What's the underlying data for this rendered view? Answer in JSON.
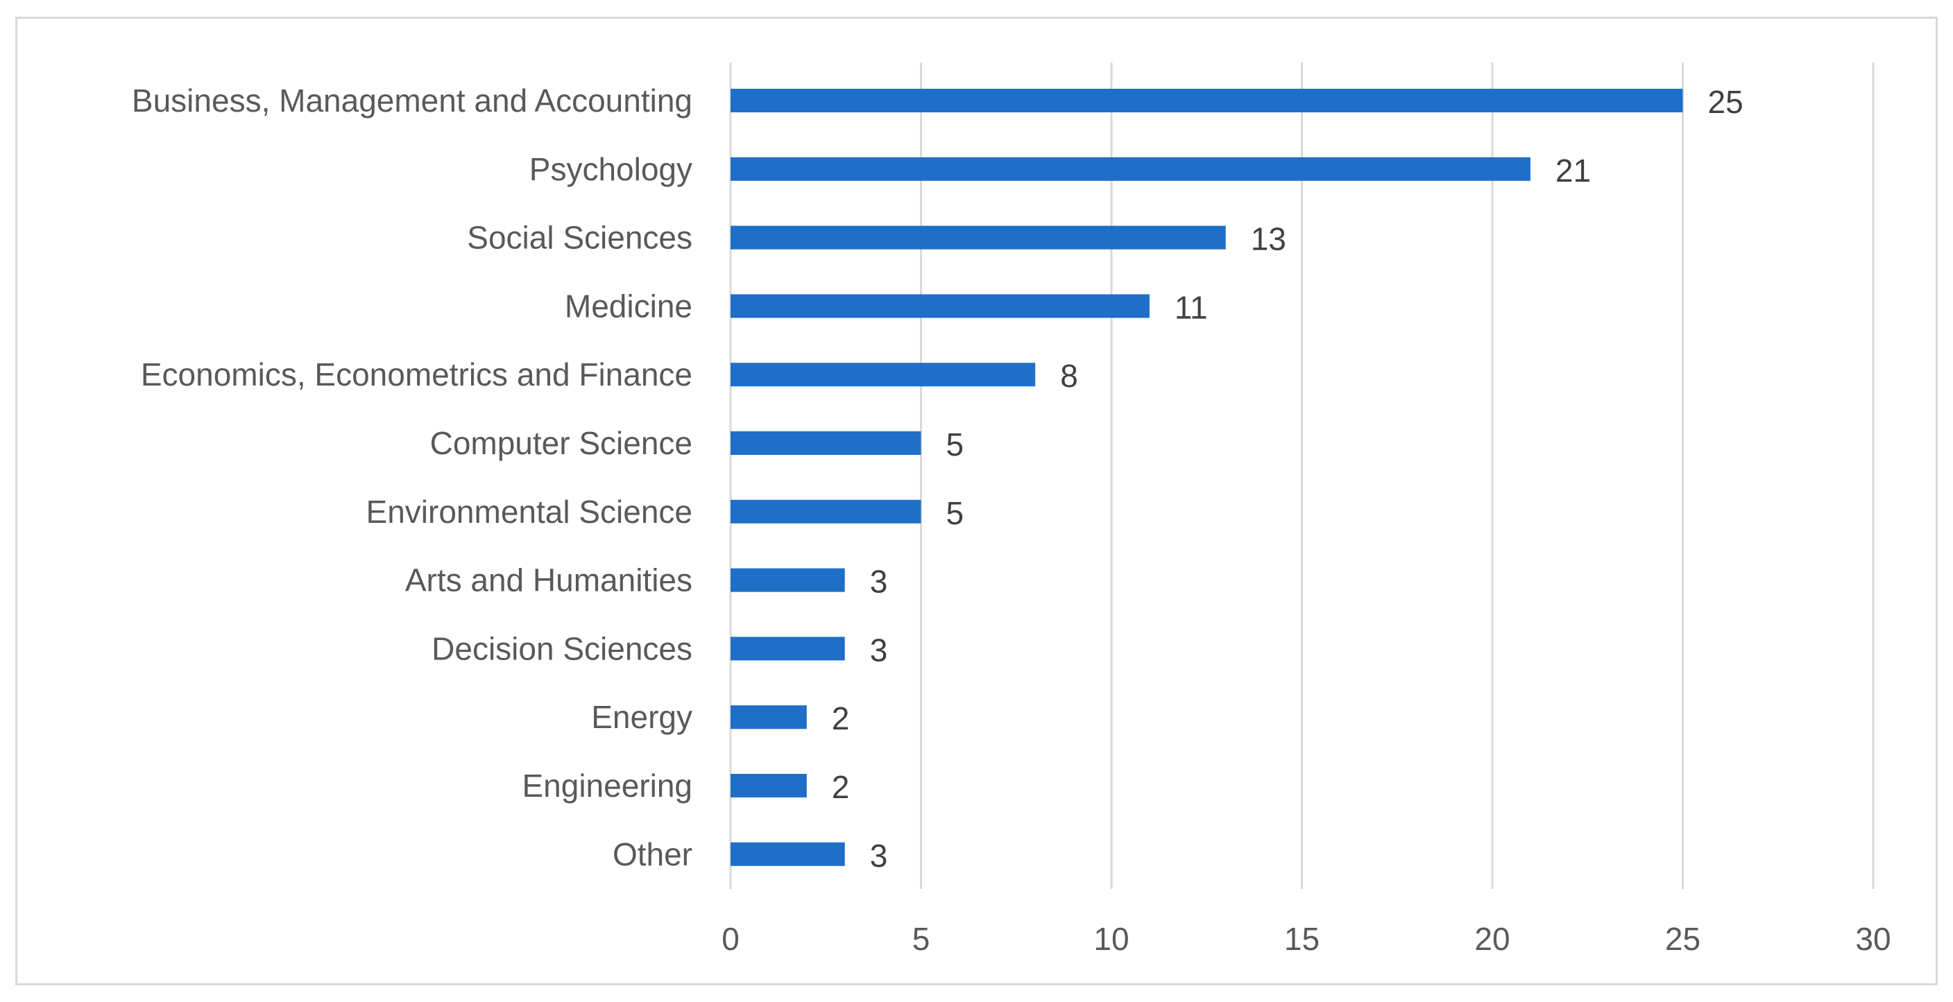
{
  "chart_data": {
    "type": "bar",
    "orientation": "horizontal",
    "title": "",
    "xlabel": "",
    "ylabel": "",
    "categories": [
      "Business, Management and Accounting",
      "Psychology",
      "Social Sciences",
      "Medicine",
      "Economics, Econometrics and Finance",
      "Computer Science",
      "Environmental Science",
      "Arts and Humanities",
      "Decision Sciences",
      "Energy",
      "Engineering",
      "Other"
    ],
    "values": [
      25,
      21,
      13,
      11,
      8,
      5,
      5,
      3,
      3,
      2,
      2,
      3
    ],
    "xlim": [
      0,
      30
    ],
    "xticks": [
      0,
      5,
      10,
      15,
      20,
      25,
      30
    ],
    "grid": "vertical",
    "legend": "none",
    "data_labels": true,
    "bar_color": "#1f6fc9",
    "gridline_color": "#d9d9d9"
  }
}
